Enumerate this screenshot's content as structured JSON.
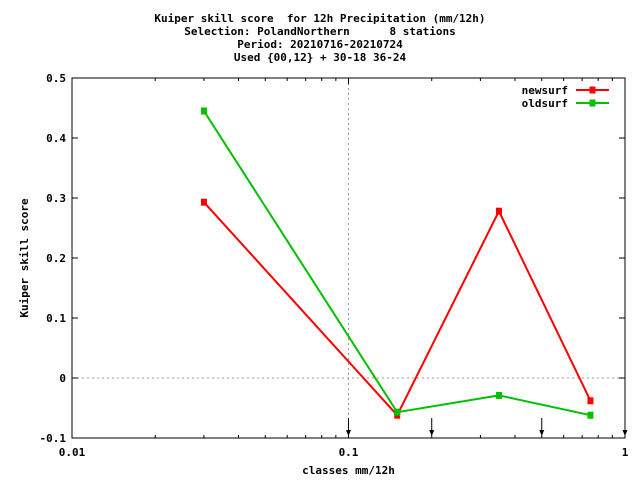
{
  "chart_data": {
    "type": "line",
    "title": [
      "Kuiper skill score  for 12h Precipitation (mm/12h)",
      "Selection: PolandNorthern      8 stations",
      "Period: 20210716-20210724",
      "Used {00,12} + 30-18 36-24"
    ],
    "xlabel": "classes mm/12h",
    "ylabel": "Kuiper skill score",
    "x_scale": "log",
    "xlim": [
      0.01,
      1
    ],
    "ylim": [
      -0.1,
      0.5
    ],
    "x_ticks": [
      0.01,
      0.1,
      1
    ],
    "x_tick_labels": [
      "0.01",
      "0.1",
      "1"
    ],
    "y_ticks": [
      -0.1,
      0,
      0.1,
      0.2,
      0.3,
      0.4,
      0.5
    ],
    "y_tick_labels": [
      "-0.1",
      "0",
      "0.1",
      "0.2",
      "0.3",
      "0.4",
      "0.5"
    ],
    "grid": "dashed at x=0.1 and y=0",
    "legend": "top-right",
    "threshold_arrows": [
      0.1,
      0.2,
      0.5,
      1
    ],
    "series": [
      {
        "name": "newsurf",
        "color": "#ff0000",
        "x": [
          0.03,
          0.15,
          0.35,
          0.75
        ],
        "y": [
          0.293,
          -0.062,
          0.278,
          -0.038
        ]
      },
      {
        "name": "oldsurf",
        "color": "#00c000",
        "x": [
          0.03,
          0.15,
          0.35,
          0.75
        ],
        "y": [
          0.445,
          -0.057,
          -0.029,
          -0.062
        ]
      }
    ]
  }
}
